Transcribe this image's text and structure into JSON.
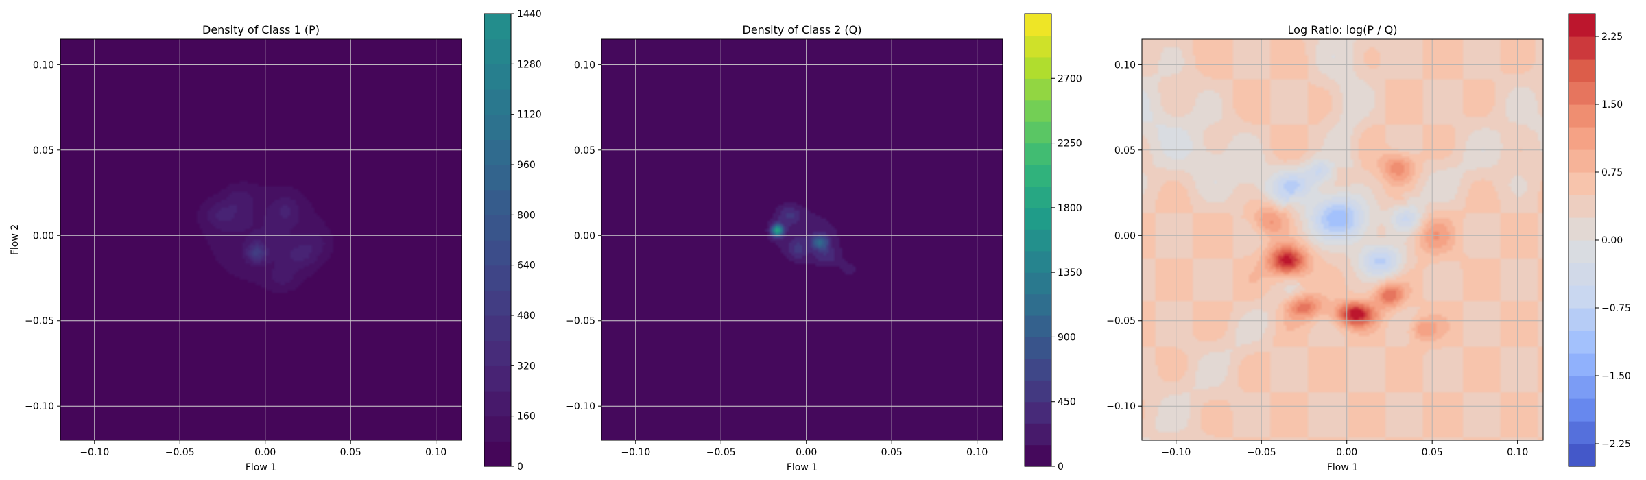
{
  "chart_data": [
    {
      "type": "heatmap",
      "title": "Density of Class 1 (P)",
      "xlabel": "Flow 1",
      "ylabel": "Flow 2",
      "xlim": [
        -0.12,
        0.115
      ],
      "ylim": [
        -0.12,
        0.115
      ],
      "xticks": [
        -0.1,
        -0.05,
        0.0,
        0.05,
        0.1
      ],
      "xtick_labels": [
        "−0.10",
        "−0.05",
        "0.00",
        "0.05",
        "0.10"
      ],
      "yticks": [
        -0.1,
        -0.05,
        0.0,
        0.05,
        0.1
      ],
      "ytick_labels": [
        "−0.10",
        "−0.05",
        "0.00",
        "0.05",
        "0.10"
      ],
      "grid": true,
      "colormap": "viridis",
      "colorbar": {
        "vmin": 0,
        "vmax": 1440,
        "color_stops": [
          "#440154",
          "#482878",
          "#3e4989",
          "#31688e",
          "#26828e",
          "#1f9e89",
          "#35b779",
          "#6ece58",
          "#b5de2b",
          "#fde725"
        ],
        "map_max": 1440,
        "full_scale_max": 2880,
        "ticks": [
          0,
          160,
          320,
          480,
          640,
          800,
          960,
          1120,
          1280,
          1440
        ],
        "tick_labels": [
          "0",
          "160",
          "320",
          "480",
          "640",
          "800",
          "960",
          "1120",
          "1280",
          "1440"
        ],
        "levels": 18
      },
      "density_blobs": [
        {
          "x": 0.0,
          "y": 0.0,
          "sx": 0.028,
          "sy": 0.024,
          "a": 160
        },
        {
          "x": -0.005,
          "y": -0.01,
          "sx": 0.004,
          "sy": 0.004,
          "a": 380
        },
        {
          "x": -0.025,
          "y": 0.012,
          "sx": 0.008,
          "sy": 0.006,
          "a": 170
        },
        {
          "x": 0.02,
          "y": -0.012,
          "sx": 0.007,
          "sy": 0.006,
          "a": 150
        },
        {
          "x": 0.012,
          "y": 0.015,
          "sx": 0.006,
          "sy": 0.006,
          "a": 140
        },
        {
          "x": -0.015,
          "y": 0.022,
          "sx": 0.006,
          "sy": 0.005,
          "a": 110
        },
        {
          "x": 0.03,
          "y": -0.005,
          "sx": 0.006,
          "sy": 0.006,
          "a": 100
        },
        {
          "x": 0.01,
          "y": -0.025,
          "sx": 0.006,
          "sy": 0.005,
          "a": 110
        }
      ]
    },
    {
      "type": "heatmap",
      "title": "Density of Class 2 (Q)",
      "xlabel": "Flow 1",
      "ylabel": "",
      "xlim": [
        -0.12,
        0.115
      ],
      "ylim": [
        -0.12,
        0.115
      ],
      "xticks": [
        -0.1,
        -0.05,
        0.0,
        0.05,
        0.1
      ],
      "xtick_labels": [
        "−0.10",
        "−0.05",
        "0.00",
        "0.05",
        "0.10"
      ],
      "yticks": [
        -0.1,
        -0.05,
        0.0,
        0.05,
        0.1
      ],
      "ytick_labels": [
        "−0.10",
        "−0.05",
        "0.00",
        "0.05",
        "0.10"
      ],
      "grid": true,
      "colormap": "viridis",
      "colorbar": {
        "vmin": 0,
        "vmax": 3150,
        "color_stops": [
          "#440154",
          "#482878",
          "#3e4989",
          "#31688e",
          "#26828e",
          "#1f9e89",
          "#35b779",
          "#6ece58",
          "#b5de2b",
          "#fde725"
        ],
        "map_max": 3150,
        "full_scale_max": 3150,
        "ticks": [
          0,
          450,
          900,
          1350,
          1800,
          2250,
          2700
        ],
        "tick_labels": [
          "0",
          "450",
          "900",
          "1350",
          "1800",
          "2250",
          "2700"
        ],
        "levels": 21
      },
      "density_blobs": [
        {
          "x": 0.0,
          "y": 0.0,
          "sx": 0.02,
          "sy": 0.014,
          "a": 220
        },
        {
          "x": -0.017,
          "y": 0.003,
          "sx": 0.0025,
          "sy": 0.0025,
          "a": 1700
        },
        {
          "x": 0.008,
          "y": -0.004,
          "sx": 0.0035,
          "sy": 0.003,
          "a": 900
        },
        {
          "x": -0.01,
          "y": 0.012,
          "sx": 0.005,
          "sy": 0.004,
          "a": 350
        },
        {
          "x": 0.012,
          "y": -0.012,
          "sx": 0.005,
          "sy": 0.004,
          "a": 300
        },
        {
          "x": -0.005,
          "y": -0.008,
          "sx": 0.004,
          "sy": 0.004,
          "a": 350
        },
        {
          "x": 0.025,
          "y": -0.02,
          "sx": 0.005,
          "sy": 0.004,
          "a": 150
        }
      ]
    },
    {
      "type": "heatmap",
      "title": "Log Ratio: log(P / Q)",
      "xlabel": "Flow 1",
      "ylabel": "",
      "xlim": [
        -0.12,
        0.115
      ],
      "ylim": [
        -0.12,
        0.115
      ],
      "xticks": [
        -0.1,
        -0.05,
        0.0,
        0.05,
        0.1
      ],
      "xtick_labels": [
        "−0.10",
        "−0.05",
        "0.00",
        "0.05",
        "0.10"
      ],
      "yticks": [
        -0.1,
        -0.05,
        0.0,
        0.05,
        0.1
      ],
      "ytick_labels": [
        "−0.10",
        "−0.05",
        "0.00",
        "0.05",
        "0.10"
      ],
      "grid": true,
      "colormap": "coolwarm",
      "colorbar": {
        "vmin": -2.5,
        "vmax": 2.5,
        "color_stops": [
          "#3b4cc0",
          "#6788ee",
          "#9abbff",
          "#c9d7f0",
          "#dddddd",
          "#f7c4ac",
          "#f49a7b",
          "#dc5d4a",
          "#b40426"
        ],
        "ticks": [
          -2.25,
          -1.5,
          -0.75,
          0.0,
          0.75,
          1.5,
          2.25
        ],
        "tick_labels": [
          "−2.25",
          "−1.50",
          "−0.75",
          "0.00",
          "0.75",
          "1.50",
          "2.25"
        ],
        "levels": 20
      },
      "background_value": 0.5,
      "neutral_wedges": [
        {
          "angle_deg": 150,
          "width_deg": 20,
          "value": 0.0
        },
        {
          "angle_deg": 90,
          "width_deg": 14,
          "value": 0.1
        },
        {
          "angle_deg": 30,
          "width_deg": 18,
          "value": 0.2
        },
        {
          "angle_deg": 225,
          "width_deg": 12,
          "value": 0.25
        }
      ],
      "ratio_blobs": [
        {
          "x": -0.035,
          "y": -0.015,
          "sx": 0.008,
          "sy": 0.006,
          "a": 1.9
        },
        {
          "x": 0.005,
          "y": -0.046,
          "sx": 0.008,
          "sy": 0.005,
          "a": 1.9
        },
        {
          "x": -0.025,
          "y": -0.042,
          "sx": 0.008,
          "sy": 0.005,
          "a": 1.1
        },
        {
          "x": 0.025,
          "y": -0.035,
          "sx": 0.006,
          "sy": 0.005,
          "a": 1.2
        },
        {
          "x": 0.03,
          "y": 0.04,
          "sx": 0.007,
          "sy": 0.006,
          "a": 0.9
        },
        {
          "x": -0.045,
          "y": 0.01,
          "sx": 0.007,
          "sy": 0.007,
          "a": 0.8
        },
        {
          "x": 0.045,
          "y": -0.055,
          "sx": 0.006,
          "sy": 0.005,
          "a": 0.7
        },
        {
          "x": 0.05,
          "y": 0.0,
          "sx": 0.008,
          "sy": 0.008,
          "a": 0.6
        },
        {
          "x": -0.005,
          "y": 0.01,
          "sx": 0.012,
          "sy": 0.01,
          "a": -1.7
        },
        {
          "x": 0.02,
          "y": -0.015,
          "sx": 0.009,
          "sy": 0.007,
          "a": -1.3
        },
        {
          "x": -0.03,
          "y": 0.03,
          "sx": 0.009,
          "sy": 0.007,
          "a": -1.0
        },
        {
          "x": 0.035,
          "y": 0.01,
          "sx": 0.007,
          "sy": 0.006,
          "a": -1.0
        },
        {
          "x": -0.015,
          "y": 0.038,
          "sx": 0.006,
          "sy": 0.005,
          "a": -0.9
        }
      ]
    }
  ]
}
